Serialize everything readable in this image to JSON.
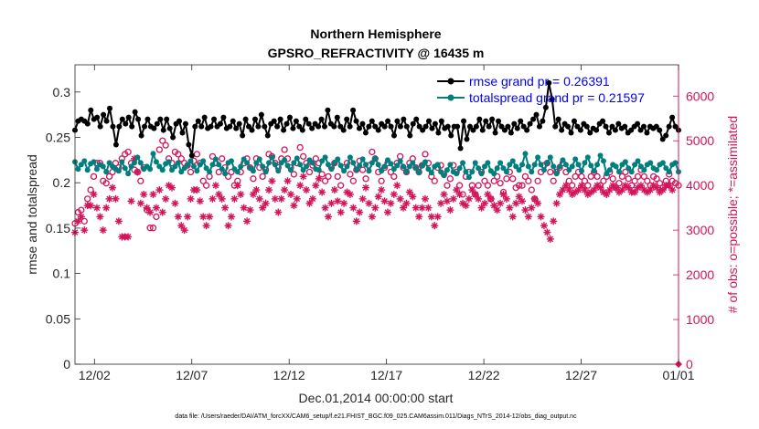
{
  "chart_data": {
    "type": "line",
    "title_line1": "Northern Hemisphere",
    "title_line2": "GPSRO_REFRACTIVITY @ 16435 m",
    "xlabel": "Dec.01,2014 00:00:00 start",
    "ylabel_left": "rmse and totalspread",
    "ylabel_right": "# of obs: o=possible; *=assimilated",
    "x_range_days": [
      0,
      31
    ],
    "ylim_left": [
      0,
      0.33
    ],
    "ylim_right": [
      0,
      6700
    ],
    "yticks_left": [
      {
        "value": 0,
        "label": "0"
      },
      {
        "value": 0.05,
        "label": "0.05"
      },
      {
        "value": 0.1,
        "label": "0.1"
      },
      {
        "value": 0.15,
        "label": "0.15"
      },
      {
        "value": 0.2,
        "label": "0.2"
      },
      {
        "value": 0.25,
        "label": "0.25"
      },
      {
        "value": 0.3,
        "label": "0.3"
      }
    ],
    "yticks_right": [
      {
        "value": 0,
        "label": "0"
      },
      {
        "value": 1000,
        "label": "1000"
      },
      {
        "value": 2000,
        "label": "2000"
      },
      {
        "value": 3000,
        "label": "3000"
      },
      {
        "value": 4000,
        "label": "4000"
      },
      {
        "value": 5000,
        "label": "5000"
      },
      {
        "value": 6000,
        "label": "6000"
      }
    ],
    "xticks": [
      {
        "day": 1,
        "label": "12/02"
      },
      {
        "day": 6,
        "label": "12/07"
      },
      {
        "day": 11,
        "label": "12/12"
      },
      {
        "day": 16,
        "label": "12/17"
      },
      {
        "day": 21,
        "label": "12/22"
      },
      {
        "day": 26,
        "label": "12/27"
      },
      {
        "day": 31,
        "label": "01/01"
      }
    ],
    "series": [
      {
        "name": "rmse",
        "legend": "rmse grand pr = 0.26391",
        "color": "#000000",
        "values": [
          0.258,
          0.268,
          0.27,
          0.268,
          0.265,
          0.28,
          0.27,
          0.272,
          0.262,
          0.275,
          0.268,
          0.282,
          0.262,
          0.242,
          0.262,
          0.27,
          0.265,
          0.272,
          0.262,
          0.278,
          0.27,
          0.252,
          0.262,
          0.27,
          0.262,
          0.26,
          0.265,
          0.27,
          0.258,
          0.27,
          0.26,
          0.25,
          0.265,
          0.268,
          0.255,
          0.265,
          0.242,
          0.23,
          0.262,
          0.268,
          0.262,
          0.272,
          0.26,
          0.262,
          0.27,
          0.262,
          0.265,
          0.272,
          0.26,
          0.262,
          0.268,
          0.26,
          0.265,
          0.252,
          0.27,
          0.262,
          0.258,
          0.27,
          0.262,
          0.275,
          0.262,
          0.252,
          0.265,
          0.268,
          0.262,
          0.27,
          0.258,
          0.265,
          0.272,
          0.26,
          0.268,
          0.262,
          0.258,
          0.27,
          0.265,
          0.26,
          0.265,
          0.262,
          0.27,
          0.262,
          0.28,
          0.265,
          0.262,
          0.272,
          0.262,
          0.258,
          0.27,
          0.262,
          0.28,
          0.268,
          0.26,
          0.265,
          0.255,
          0.262,
          0.268,
          0.262,
          0.258,
          0.265,
          0.262,
          0.268,
          0.262,
          0.252,
          0.268,
          0.262,
          0.27,
          0.262,
          0.252,
          0.265,
          0.27,
          0.262,
          0.258,
          0.262,
          0.268,
          0.26,
          0.265,
          0.255,
          0.268,
          0.26,
          0.262,
          0.252,
          0.262,
          0.262,
          0.238,
          0.268,
          0.248,
          0.262,
          0.258,
          0.262,
          0.27,
          0.258,
          0.268,
          0.262,
          0.27,
          0.255,
          0.268,
          0.262,
          0.258,
          0.262,
          0.255,
          0.265,
          0.26,
          0.268,
          0.262,
          0.258,
          0.265,
          0.27,
          0.275,
          0.262,
          0.268,
          0.283,
          0.31,
          0.292,
          0.262,
          0.27,
          0.258,
          0.265,
          0.262,
          0.255,
          0.268,
          0.262,
          0.258,
          0.265,
          0.262,
          0.255,
          0.26,
          0.258,
          0.265,
          0.268,
          0.262,
          0.255,
          0.262,
          0.258,
          0.265,
          0.26,
          0.262,
          0.255,
          0.258,
          0.262,
          0.265,
          0.258,
          0.262,
          0.255,
          0.262,
          0.26,
          0.262,
          0.258,
          0.248,
          0.252,
          0.262,
          0.272,
          0.262,
          0.258
        ]
      },
      {
        "name": "totalspread",
        "legend": "totalspread grand pr = 0.21597",
        "color": "#007f7f",
        "values": [
          0.223,
          0.215,
          0.22,
          0.224,
          0.214,
          0.221,
          0.223,
          0.215,
          0.22,
          0.218,
          0.212,
          0.222,
          0.218,
          0.215,
          0.213,
          0.223,
          0.216,
          0.21,
          0.218,
          0.222,
          0.228,
          0.222,
          0.215,
          0.218,
          0.215,
          0.232,
          0.223,
          0.218,
          0.214,
          0.221,
          0.223,
          0.214,
          0.218,
          0.222,
          0.212,
          0.216,
          0.22,
          0.224,
          0.218,
          0.213,
          0.22,
          0.224,
          0.216,
          0.212,
          0.22,
          0.226,
          0.22,
          0.215,
          0.21,
          0.222,
          0.224,
          0.215,
          0.212,
          0.218,
          0.226,
          0.222,
          0.216,
          0.213,
          0.222,
          0.226,
          0.218,
          0.212,
          0.222,
          0.228,
          0.22,
          0.213,
          0.222,
          0.225,
          0.219,
          0.214,
          0.222,
          0.227,
          0.22,
          0.214,
          0.218,
          0.225,
          0.222,
          0.215,
          0.214,
          0.224,
          0.228,
          0.22,
          0.215,
          0.222,
          0.226,
          0.219,
          0.213,
          0.218,
          0.228,
          0.222,
          0.214,
          0.219,
          0.226,
          0.22,
          0.213,
          0.222,
          0.227,
          0.22,
          0.213,
          0.218,
          0.225,
          0.221,
          0.215,
          0.219,
          0.224,
          0.218,
          0.212,
          0.218,
          0.222,
          0.216,
          0.211,
          0.219,
          0.223,
          0.215,
          0.211,
          0.218,
          0.22,
          0.212,
          0.208,
          0.214,
          0.22,
          0.212,
          0.21,
          0.216,
          0.222,
          0.212,
          0.206,
          0.212,
          0.222,
          0.216,
          0.21,
          0.218,
          0.222,
          0.213,
          0.21,
          0.216,
          0.222,
          0.216,
          0.212,
          0.22,
          0.224,
          0.218,
          0.214,
          0.22,
          0.232,
          0.218,
          0.212,
          0.22,
          0.228,
          0.22,
          0.214,
          0.222,
          0.228,
          0.218,
          0.21,
          0.218,
          0.225,
          0.22,
          0.214,
          0.218,
          0.226,
          0.22,
          0.213,
          0.222,
          0.228,
          0.219,
          0.213,
          0.22,
          0.23,
          0.224,
          0.21,
          0.214,
          0.22,
          0.218,
          0.212,
          0.22,
          0.223,
          0.216,
          0.212,
          0.22,
          0.224,
          0.218,
          0.214,
          0.22,
          0.222,
          0.216,
          0.214,
          0.22,
          0.222,
          0.216,
          0.212,
          0.22,
          0.222,
          0.212
        ]
      },
      {
        "name": "obs possible",
        "color": "#d4145a",
        "marker": "o",
        "values": [
          3150,
          3400,
          3450,
          3200,
          3700,
          3900,
          4200,
          4500,
          4500,
          4100,
          4050,
          4200,
          4300,
          4500,
          4400,
          4600,
          4700,
          4750,
          4500,
          4350,
          4300,
          4100,
          4400,
          3450,
          3050,
          3050,
          3300,
          4800,
          5000,
          4900,
          4600,
          4500,
          4750,
          4700,
          4600,
          4500,
          4450,
          4300,
          4550,
          4700,
          4500,
          4100,
          4000,
          4200,
          4650,
          4500,
          4300,
          4600,
          4400,
          4200,
          4300,
          4000,
          4100,
          4300,
          4500,
          4600,
          4400,
          4150,
          4600,
          4400,
          4200,
          4350,
          4700,
          4650,
          4500,
          4400,
          4600,
          4800,
          4600,
          4400,
          4250,
          4500,
          4850,
          4650,
          4500,
          4300,
          4450,
          4600,
          4500,
          4250,
          4100,
          4200,
          4400,
          4500,
          4200,
          4000,
          4400,
          4500,
          4250,
          4100,
          4350,
          4550,
          4350,
          4150,
          4450,
          4750,
          4600,
          4300,
          4100,
          4400,
          4500,
          4300,
          4200,
          4500,
          4650,
          4400,
          4300,
          4500,
          4600,
          4400,
          4300,
          4450,
          4700,
          4500,
          4200,
          4100,
          4400,
          4450,
          4250,
          4000,
          4150,
          4450,
          4300,
          4000,
          3800,
          4200,
          4300,
          4000,
          3800,
          4000,
          4300,
          4100,
          4000,
          3700,
          4100,
          4200,
          4050,
          3850,
          4150,
          4300,
          4150,
          3950,
          4000,
          4000,
          4200,
          4100,
          3900,
          3700,
          4100,
          4300,
          4450,
          4500,
          4300,
          4100,
          4300,
          4400,
          4500,
          4300,
          4100,
          4000,
          4200,
          4300,
          4200,
          4100,
          4000,
          4200,
          4300,
          4200,
          4000,
          4100,
          4200,
          4300,
          4150,
          3950,
          4050,
          4200,
          4300,
          4150,
          4000,
          4100,
          4200,
          4350,
          4200,
          4100,
          4000,
          4200,
          4150,
          4050,
          3950,
          4100,
          4250,
          4100,
          4050,
          4000
        ]
      },
      {
        "name": "obs assimilated",
        "color": "#d4145a",
        "marker": "*",
        "values": [
          2950,
          3200,
          3300,
          3000,
          3550,
          3550,
          3800,
          3500,
          3300,
          3000,
          3500,
          3700,
          3950,
          3700,
          3200,
          2850,
          2850,
          2850,
          3650,
          4600,
          4300,
          3600,
          3800,
          3500,
          3400,
          3800,
          3500,
          3900,
          3400,
          3700,
          4000,
          3950,
          3600,
          3300,
          3100,
          3000,
          3300,
          3700,
          3900,
          3900,
          3650,
          3300,
          3100,
          3300,
          3700,
          4000,
          3800,
          3700,
          3500,
          3100,
          3300,
          3700,
          4000,
          3800,
          3500,
          3200,
          3450,
          3800,
          3900,
          3700,
          3500,
          3600,
          3900,
          4100,
          3700,
          3400,
          3700,
          3900,
          4100,
          3800,
          3550,
          3700,
          4000,
          4200,
          3900,
          3600,
          3700,
          4000,
          4150,
          3850,
          3500,
          3300,
          3600,
          3900,
          3650,
          3400,
          3600,
          3850,
          3800,
          3500,
          3200,
          3400,
          3700,
          3950,
          3600,
          3300,
          3500,
          3750,
          3900,
          3650,
          3400,
          3600,
          3800,
          4000,
          3700,
          3500,
          3600,
          3850,
          3750,
          3500,
          3300,
          3500,
          3700,
          3500,
          3300,
          3100,
          3300,
          3600,
          3800,
          3650,
          3450,
          3700,
          3900,
          3800,
          3600,
          3550,
          3700,
          3900,
          3800,
          3700,
          3500,
          3600,
          3800,
          3700,
          3550,
          3450,
          3600,
          3800,
          3700,
          3500,
          3300,
          3600,
          3750,
          3650,
          3450,
          3300,
          3500,
          3700,
          3600,
          3300,
          3100,
          2950,
          2800,
          3200,
          3600,
          3800,
          3900,
          4000,
          3900,
          3800,
          3850,
          3900,
          4000,
          3900,
          3800,
          3850,
          3900,
          4000,
          3950,
          3850,
          3800,
          3900,
          4000,
          3950,
          3850,
          3900,
          4000,
          3950,
          3850,
          3850,
          3950,
          4000,
          3900,
          3850,
          3900,
          4000,
          3950,
          3850,
          3900,
          4000,
          4000,
          3900
        ]
      }
    ],
    "footnote": "data file: /Users/raeder/DAI/ATM_forcXX/CAM6_setup/f.e21.FHIST_BGC.f09_025.CAM6assim.011/Diags_NTrS_2014-12/obs_diag_output.nc"
  }
}
